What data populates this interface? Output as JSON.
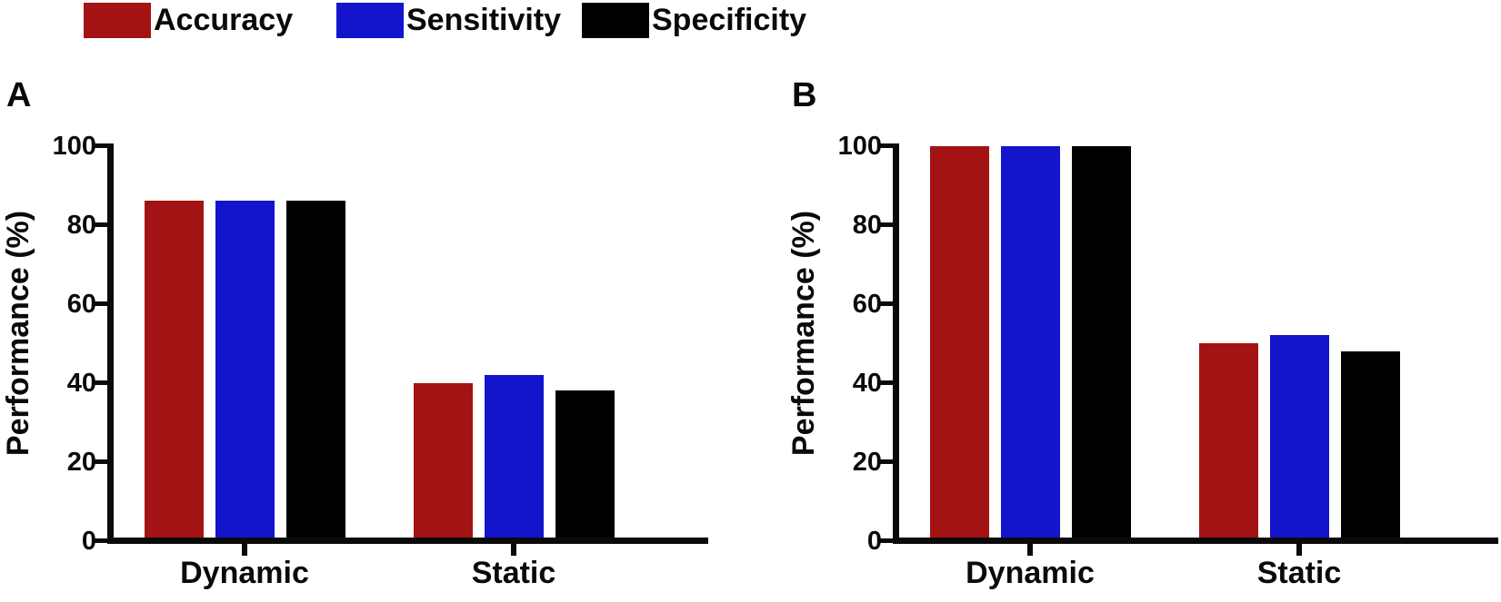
{
  "figure": {
    "background": "#FFFFFF",
    "text_color": "#0A0A0A"
  },
  "legend": {
    "items": [
      {
        "label": "Accuracy",
        "color": "#A31313",
        "swatch": "accuracy-swatch"
      },
      {
        "label": "Sensitivity",
        "color": "#1414CC",
        "swatch": "sensitivity-swatch"
      },
      {
        "label": "Specificity",
        "color": "#000000",
        "swatch": "specificity-swatch"
      }
    ]
  },
  "chart_data": [
    {
      "panel": "A",
      "type": "bar",
      "categories": [
        "Dynamic",
        "Static"
      ],
      "series": [
        {
          "name": "Accuracy",
          "color": "#A31313",
          "values": [
            86,
            40
          ]
        },
        {
          "name": "Sensitivity",
          "color": "#1414CC",
          "values": [
            86,
            42
          ]
        },
        {
          "name": "Specificity",
          "color": "#000000",
          "values": [
            86,
            38
          ]
        }
      ],
      "title": "",
      "xlabel": "",
      "ylabel": "Performance (%)",
      "ylim": [
        0,
        100
      ],
      "yticks": [
        0,
        20,
        40,
        60,
        80,
        100
      ],
      "grid": false,
      "legend_position": "top-shared"
    },
    {
      "panel": "B",
      "type": "bar",
      "categories": [
        "Dynamic",
        "Static"
      ],
      "series": [
        {
          "name": "Accuracy",
          "color": "#A31313",
          "values": [
            100,
            50
          ]
        },
        {
          "name": "Sensitivity",
          "color": "#1414CC",
          "values": [
            100,
            52
          ]
        },
        {
          "name": "Specificity",
          "color": "#000000",
          "values": [
            100,
            48
          ]
        }
      ],
      "title": "",
      "xlabel": "",
      "ylabel": "Performance (%)",
      "ylim": [
        0,
        100
      ],
      "yticks": [
        0,
        20,
        40,
        60,
        80,
        100
      ],
      "grid": false,
      "legend_position": "top-shared"
    }
  ]
}
